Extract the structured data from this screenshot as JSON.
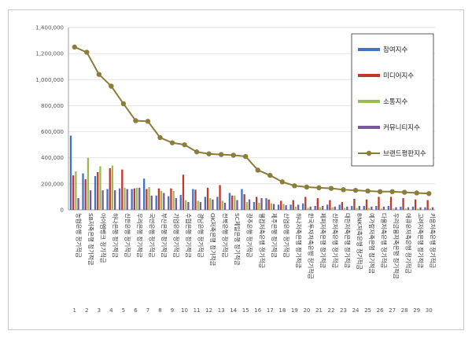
{
  "chart_data": {
    "type": "bar",
    "ylim": [
      0,
      1400000
    ],
    "yticks": [
      "0",
      "200,000",
      "400,000",
      "600,000",
      "800,000",
      "1,000,000",
      "1,200,000",
      "1,400,000"
    ],
    "grid": true,
    "legend_position": "top-right",
    "numbers": [
      "1",
      "2",
      "3",
      "4",
      "5",
      "6",
      "7",
      "8",
      "9",
      "10",
      "11",
      "12",
      "13",
      "14",
      "15",
      "16",
      "17",
      "18",
      "19",
      "20",
      "21",
      "22",
      "23",
      "24",
      "25",
      "26",
      "27",
      "28",
      "29",
      "30"
    ],
    "categories": [
      "농협은행 정기적금",
      "SB저축은행 정기적금",
      "아이엠뱅크 정기적금",
      "하나은행 정기적금",
      "신한은행 정기적금",
      "우리은행 정기적금",
      "국민은행 정기적금",
      "부산은행 정기적금",
      "기업은행 정기적금",
      "수협은행 정기적금",
      "경남은행 정기적금",
      "OK저축은행 정기적금",
      "전북은행 정기적금",
      "SC제일은행 정기적금",
      "광주은행 정기적금",
      "웰컴저축은행 정기적금",
      "제주은행 정기적금",
      "산업은행 정기적금",
      "하나저축은행 정기적금",
      "한국투자저축은행 정기적금",
      "페퍼저축은행 정기적금",
      "신한저축은행 정기적금",
      "대한저축은행 정기적금",
      "BNK저축은행 정기적금",
      "예가람저축은행 정기적금",
      "다올저축은행 정기적금",
      "우리금융저축은행 정기적금",
      "애큐온저축은행 정기적금",
      "고려저축은행 정기적금",
      "키움저축은행 정기적금"
    ],
    "series": [
      {
        "name": "참여지수",
        "color": "#4472c4",
        "values": [
          570000,
          280000,
          260000,
          160000,
          165000,
          160000,
          240000,
          110000,
          105000,
          115000,
          160000,
          100000,
          100000,
          130000,
          160000,
          60000,
          90000,
          40000,
          40000,
          50000,
          30000,
          40000,
          40000,
          30000,
          30000,
          30000,
          30000,
          25000,
          25000,
          20000
        ]
      },
      {
        "name": "미디어지수",
        "color": "#c0392b",
        "values": [
          265000,
          235000,
          290000,
          320000,
          310000,
          165000,
          160000,
          165000,
          165000,
          270000,
          155000,
          170000,
          190000,
          110000,
          120000,
          100000,
          80000,
          70000,
          75000,
          100000,
          90000,
          75000,
          60000,
          85000,
          80000,
          100000,
          100000,
          90000,
          80000,
          75000
        ]
      },
      {
        "name": "소통지수",
        "color": "#9bbb59",
        "values": [
          295000,
          400000,
          335000,
          340000,
          170000,
          170000,
          175000,
          145000,
          145000,
          75000,
          70000,
          90000,
          70000,
          110000,
          60000,
          55000,
          50000,
          45000,
          25000,
          15000,
          20000,
          20000,
          15000,
          15000,
          15000,
          10000,
          10000,
          10000,
          10000,
          10000
        ]
      },
      {
        "name": "커뮤니티지수",
        "color": "#7b56a3",
        "values": [
          90000,
          150000,
          150000,
          150000,
          160000,
          170000,
          110000,
          130000,
          90000,
          60000,
          60000,
          80000,
          55000,
          75000,
          80000,
          90000,
          45000,
          35000,
          40000,
          25000,
          30000,
          25000,
          25000,
          30000,
          25000,
          25000,
          20000,
          20000,
          20000,
          20000
        ]
      }
    ],
    "line_series": {
      "name": "브랜드평판지수",
      "color": "#8b7d3a",
      "values": [
        1250000,
        1210000,
        1040000,
        950000,
        815000,
        685000,
        680000,
        555000,
        515000,
        500000,
        445000,
        430000,
        425000,
        420000,
        410000,
        305000,
        265000,
        215000,
        185000,
        175000,
        170000,
        165000,
        155000,
        150000,
        145000,
        140000,
        140000,
        135000,
        130000,
        125000
      ]
    }
  }
}
